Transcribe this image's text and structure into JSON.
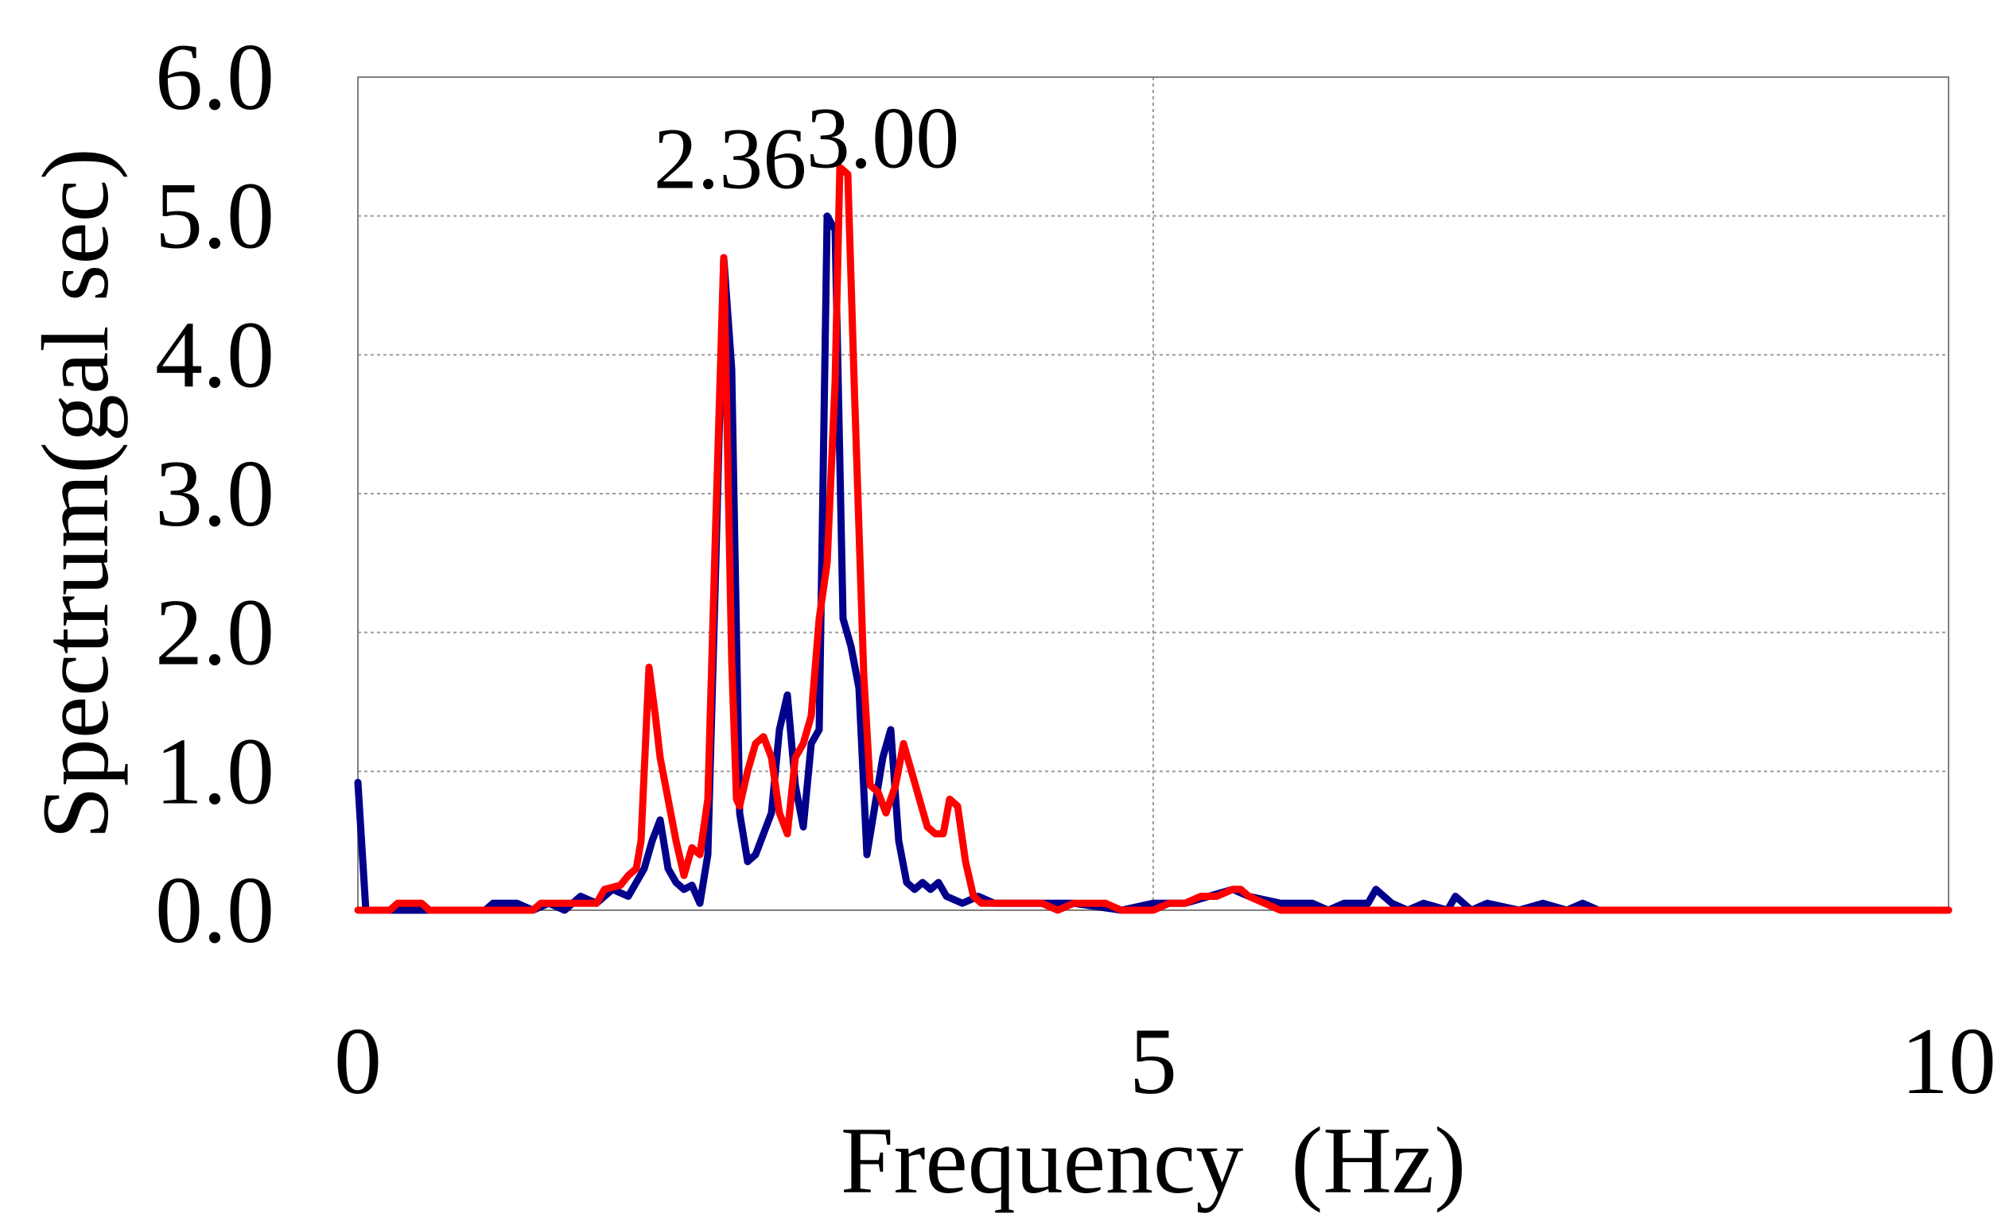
{
  "chart_data": {
    "type": "line",
    "title": "",
    "xlabel": "Frequency  (Hz)",
    "ylabel": "Spectrum(gal sec)",
    "xlim": [
      0,
      10
    ],
    "ylim": [
      0,
      6
    ],
    "xticks": [
      0,
      5,
      10
    ],
    "xtick_labels": [
      "0",
      "5",
      "10"
    ],
    "yticks": [
      0,
      1,
      2,
      3,
      4,
      5,
      6
    ],
    "ytick_labels": [
      "0.0",
      "1.0",
      "2.0",
      "3.0",
      "4.0",
      "5.0",
      "6.0"
    ],
    "grid": true,
    "legend": "none",
    "annotations": [
      {
        "text": "2.36",
        "x": 2.34,
        "y": 5.2
      },
      {
        "text": "3.00",
        "x": 3.3,
        "y": 5.35
      }
    ],
    "series": [
      {
        "color": "#00008b",
        "points": [
          [
            0.0,
            0.92
          ],
          [
            0.05,
            0.0
          ],
          [
            0.8,
            0.0
          ],
          [
            0.85,
            0.05
          ],
          [
            1.0,
            0.05
          ],
          [
            1.1,
            0.0
          ],
          [
            1.2,
            0.05
          ],
          [
            1.3,
            0.0
          ],
          [
            1.4,
            0.1
          ],
          [
            1.5,
            0.05
          ],
          [
            1.6,
            0.15
          ],
          [
            1.7,
            0.1
          ],
          [
            1.75,
            0.2
          ],
          [
            1.8,
            0.3
          ],
          [
            1.85,
            0.5
          ],
          [
            1.9,
            0.65
          ],
          [
            1.95,
            0.3
          ],
          [
            2.0,
            0.2
          ],
          [
            2.05,
            0.15
          ],
          [
            2.1,
            0.18
          ],
          [
            2.15,
            0.05
          ],
          [
            2.2,
            0.4
          ],
          [
            2.25,
            2.5
          ],
          [
            2.3,
            4.7
          ],
          [
            2.35,
            3.9
          ],
          [
            2.4,
            0.7
          ],
          [
            2.45,
            0.35
          ],
          [
            2.5,
            0.4
          ],
          [
            2.6,
            0.7
          ],
          [
            2.65,
            1.3
          ],
          [
            2.7,
            1.55
          ],
          [
            2.75,
            0.9
          ],
          [
            2.8,
            0.6
          ],
          [
            2.85,
            1.2
          ],
          [
            2.9,
            1.3
          ],
          [
            2.95,
            5.0
          ],
          [
            3.0,
            4.9
          ],
          [
            3.05,
            2.1
          ],
          [
            3.1,
            1.9
          ],
          [
            3.15,
            1.6
          ],
          [
            3.2,
            0.4
          ],
          [
            3.3,
            1.1
          ],
          [
            3.35,
            1.3
          ],
          [
            3.4,
            0.5
          ],
          [
            3.45,
            0.2
          ],
          [
            3.5,
            0.15
          ],
          [
            3.55,
            0.2
          ],
          [
            3.6,
            0.15
          ],
          [
            3.65,
            0.2
          ],
          [
            3.7,
            0.1
          ],
          [
            3.8,
            0.05
          ],
          [
            3.9,
            0.1
          ],
          [
            4.0,
            0.05
          ],
          [
            4.5,
            0.05
          ],
          [
            4.8,
            0.0
          ],
          [
            5.0,
            0.05
          ],
          [
            5.2,
            0.05
          ],
          [
            5.35,
            0.1
          ],
          [
            5.5,
            0.15
          ],
          [
            5.6,
            0.1
          ],
          [
            5.8,
            0.05
          ],
          [
            6.0,
            0.05
          ],
          [
            6.1,
            0.0
          ],
          [
            6.2,
            0.05
          ],
          [
            6.35,
            0.05
          ],
          [
            6.4,
            0.15
          ],
          [
            6.5,
            0.05
          ],
          [
            6.6,
            0.0
          ],
          [
            6.7,
            0.05
          ],
          [
            6.85,
            0.0
          ],
          [
            6.9,
            0.1
          ],
          [
            7.0,
            0.0
          ],
          [
            7.1,
            0.05
          ],
          [
            7.3,
            0.0
          ],
          [
            7.45,
            0.05
          ],
          [
            7.6,
            0.0
          ],
          [
            7.7,
            0.05
          ],
          [
            7.8,
            0.0
          ],
          [
            10.0,
            0.0
          ]
        ]
      },
      {
        "color": "#ff0000",
        "points": [
          [
            0.0,
            0.0
          ],
          [
            0.2,
            0.0
          ],
          [
            0.25,
            0.05
          ],
          [
            0.4,
            0.05
          ],
          [
            0.45,
            0.0
          ],
          [
            0.8,
            0.0
          ],
          [
            1.1,
            0.0
          ],
          [
            1.15,
            0.05
          ],
          [
            1.3,
            0.05
          ],
          [
            1.4,
            0.05
          ],
          [
            1.5,
            0.05
          ],
          [
            1.55,
            0.15
          ],
          [
            1.65,
            0.18
          ],
          [
            1.7,
            0.25
          ],
          [
            1.75,
            0.3
          ],
          [
            1.78,
            0.5
          ],
          [
            1.83,
            1.75
          ],
          [
            1.87,
            1.4
          ],
          [
            1.9,
            1.1
          ],
          [
            1.95,
            0.8
          ],
          [
            2.0,
            0.5
          ],
          [
            2.05,
            0.25
          ],
          [
            2.1,
            0.45
          ],
          [
            2.15,
            0.4
          ],
          [
            2.2,
            0.8
          ],
          [
            2.25,
            2.8
          ],
          [
            2.3,
            4.7
          ],
          [
            2.35,
            1.8
          ],
          [
            2.38,
            0.8
          ],
          [
            2.4,
            0.75
          ],
          [
            2.45,
            1.0
          ],
          [
            2.5,
            1.2
          ],
          [
            2.55,
            1.25
          ],
          [
            2.6,
            1.1
          ],
          [
            2.65,
            0.7
          ],
          [
            2.7,
            0.55
          ],
          [
            2.75,
            1.1
          ],
          [
            2.8,
            1.2
          ],
          [
            2.85,
            1.4
          ],
          [
            2.9,
            2.1
          ],
          [
            2.95,
            2.5
          ],
          [
            3.0,
            3.8
          ],
          [
            3.03,
            5.35
          ],
          [
            3.08,
            5.3
          ],
          [
            3.12,
            3.8
          ],
          [
            3.18,
            1.7
          ],
          [
            3.22,
            0.9
          ],
          [
            3.27,
            0.85
          ],
          [
            3.32,
            0.7
          ],
          [
            3.38,
            0.9
          ],
          [
            3.43,
            1.2
          ],
          [
            3.48,
            1.0
          ],
          [
            3.53,
            0.8
          ],
          [
            3.58,
            0.6
          ],
          [
            3.63,
            0.55
          ],
          [
            3.68,
            0.55
          ],
          [
            3.72,
            0.8
          ],
          [
            3.77,
            0.75
          ],
          [
            3.82,
            0.35
          ],
          [
            3.87,
            0.1
          ],
          [
            3.92,
            0.05
          ],
          [
            4.3,
            0.05
          ],
          [
            4.4,
            0.0
          ],
          [
            4.5,
            0.05
          ],
          [
            4.7,
            0.05
          ],
          [
            4.8,
            0.0
          ],
          [
            5.0,
            0.0
          ],
          [
            5.1,
            0.05
          ],
          [
            5.2,
            0.05
          ],
          [
            5.3,
            0.1
          ],
          [
            5.4,
            0.1
          ],
          [
            5.5,
            0.15
          ],
          [
            5.55,
            0.15
          ],
          [
            5.6,
            0.1
          ],
          [
            5.7,
            0.05
          ],
          [
            5.8,
            0.0
          ],
          [
            6.0,
            0.0
          ],
          [
            10.0,
            0.0
          ]
        ]
      }
    ]
  }
}
